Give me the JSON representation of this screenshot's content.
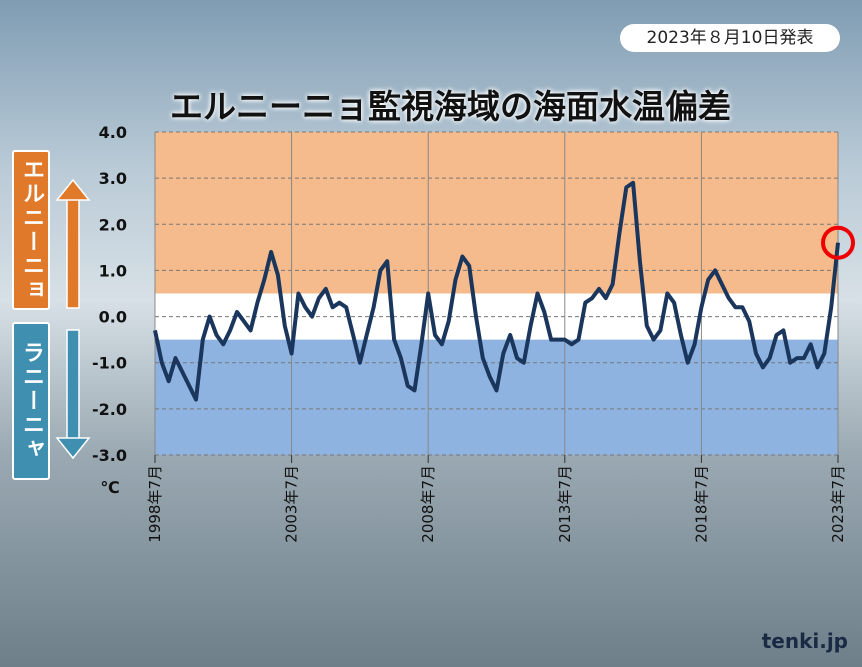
{
  "date_label": "2023年８月10日発表",
  "logo": "tenki.jp",
  "side_labels": {
    "el_nino": "エルニーニョ",
    "la_nina": "ラニーニャ"
  },
  "chart_data": {
    "type": "line",
    "title": "エルニーニョ監視海域の海面水温偏差",
    "y_unit": "℃",
    "categories": [
      "1998年7月",
      null,
      null,
      null,
      null,
      null,
      null,
      null,
      null,
      null,
      null,
      null,
      null,
      null,
      null,
      null,
      null,
      null,
      null,
      null,
      "2003年7月",
      null,
      null,
      null,
      null,
      null,
      null,
      null,
      null,
      null,
      null,
      null,
      null,
      null,
      null,
      null,
      null,
      null,
      null,
      null,
      "2008年7月",
      null,
      null,
      null,
      null,
      null,
      null,
      null,
      null,
      null,
      null,
      null,
      null,
      null,
      null,
      null,
      null,
      null,
      null,
      null,
      "2013年7月",
      null,
      null,
      null,
      null,
      null,
      null,
      null,
      null,
      null,
      null,
      null,
      null,
      null,
      null,
      null,
      null,
      null,
      null,
      null,
      "2018年7月",
      null,
      null,
      null,
      null,
      null,
      null,
      null,
      null,
      null,
      null,
      null,
      null,
      null,
      null,
      null,
      null,
      null,
      null,
      null,
      "2023年7月"
    ],
    "values": [
      -0.3,
      -1.0,
      -1.4,
      -0.9,
      -1.2,
      -1.5,
      -1.8,
      -0.5,
      0.0,
      -0.4,
      -0.6,
      -0.3,
      0.1,
      -0.1,
      -0.3,
      0.3,
      0.8,
      1.4,
      0.9,
      -0.2,
      -0.8,
      0.5,
      0.2,
      0.0,
      0.4,
      0.6,
      0.2,
      0.3,
      0.2,
      -0.4,
      -1.0,
      -0.4,
      0.2,
      1.0,
      1.2,
      -0.5,
      -0.9,
      -1.5,
      -1.6,
      -0.6,
      0.5,
      -0.4,
      -0.6,
      -0.1,
      0.8,
      1.3,
      1.1,
      0.0,
      -0.9,
      -1.3,
      -1.6,
      -0.8,
      -0.4,
      -0.9,
      -1.0,
      -0.2,
      0.5,
      0.1,
      -0.5,
      -0.5,
      -0.5,
      -0.6,
      -0.5,
      0.3,
      0.4,
      0.6,
      0.4,
      0.7,
      1.8,
      2.8,
      2.9,
      1.2,
      -0.2,
      -0.5,
      -0.3,
      0.5,
      0.3,
      -0.4,
      -1.0,
      -0.6,
      0.2,
      0.8,
      1.0,
      0.7,
      0.4,
      0.2,
      0.2,
      -0.1,
      -0.8,
      -1.1,
      -0.9,
      -0.4,
      -0.3,
      -1.0,
      -0.9,
      -0.9,
      -0.6,
      -1.1,
      -0.8,
      0.2,
      1.6
    ],
    "color": "#1b365d",
    "ylim": [
      -3,
      4
    ],
    "yticks": [
      {
        "value": 4,
        "label": "4.0"
      },
      {
        "value": 3,
        "label": "3.0"
      },
      {
        "value": 2,
        "label": "2.0"
      },
      {
        "value": 1,
        "label": "1.0"
      },
      {
        "value": 0,
        "label": "0.0"
      },
      {
        "value": -1,
        "label": "-1.0"
      },
      {
        "value": -2,
        "label": "-2.0"
      },
      {
        "value": -3,
        "label": "-3.0"
      }
    ],
    "bands": [
      {
        "from": 0.5,
        "to": 4,
        "color": "#f6bb8c"
      },
      {
        "from": -0.5,
        "to": -3,
        "color": "#8fb3e0"
      }
    ],
    "grid": true,
    "highlight_last": true
  }
}
